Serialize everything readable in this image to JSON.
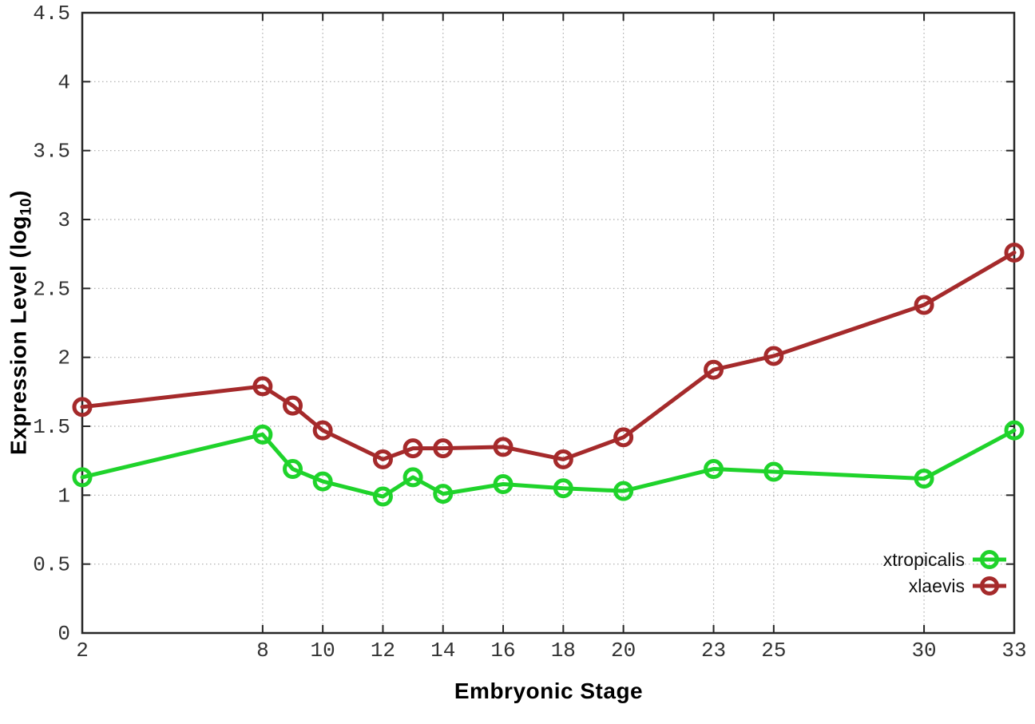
{
  "chart_data": {
    "type": "line",
    "title": "",
    "xlabel": "Embryonic Stage",
    "ylabel": "Expression Level (log10)",
    "ylabel_parts": {
      "prefix": "Expression Level (log",
      "subscript": "10",
      "suffix": ")"
    },
    "x": [
      2,
      8,
      9,
      10,
      12,
      13,
      14,
      16,
      18,
      20,
      23,
      25,
      30,
      33
    ],
    "series": [
      {
        "name": "xtropicalis",
        "color": "#1fd32b",
        "values": [
          1.13,
          1.44,
          1.19,
          1.1,
          0.99,
          1.13,
          1.01,
          1.08,
          1.05,
          1.03,
          1.19,
          1.17,
          1.12,
          1.47
        ]
      },
      {
        "name": "xlaevis",
        "color": "#a52a2b",
        "values": [
          1.64,
          1.79,
          1.65,
          1.47,
          1.26,
          1.34,
          1.34,
          1.35,
          1.26,
          1.42,
          1.91,
          2.01,
          2.38,
          2.76
        ]
      }
    ],
    "xlim": [
      2,
      33
    ],
    "ylim": [
      0,
      4.5
    ],
    "xticks": [
      2,
      8,
      10,
      12,
      14,
      16,
      18,
      20,
      23,
      25,
      30,
      33
    ],
    "yticks": [
      0,
      0.5,
      1,
      1.5,
      2,
      2.5,
      3,
      3.5,
      4,
      4.5
    ],
    "ytick_labels": [
      "0",
      "0.5",
      "1",
      "1.5",
      "2",
      "2.5",
      "3",
      "3.5",
      "4",
      "4.5"
    ],
    "grid": true,
    "legend_position": "bottom-right-inside",
    "marker": "open-circle",
    "colors": {
      "grid": "#ababab",
      "axis": "#262626",
      "tick_text": "#333333"
    }
  }
}
